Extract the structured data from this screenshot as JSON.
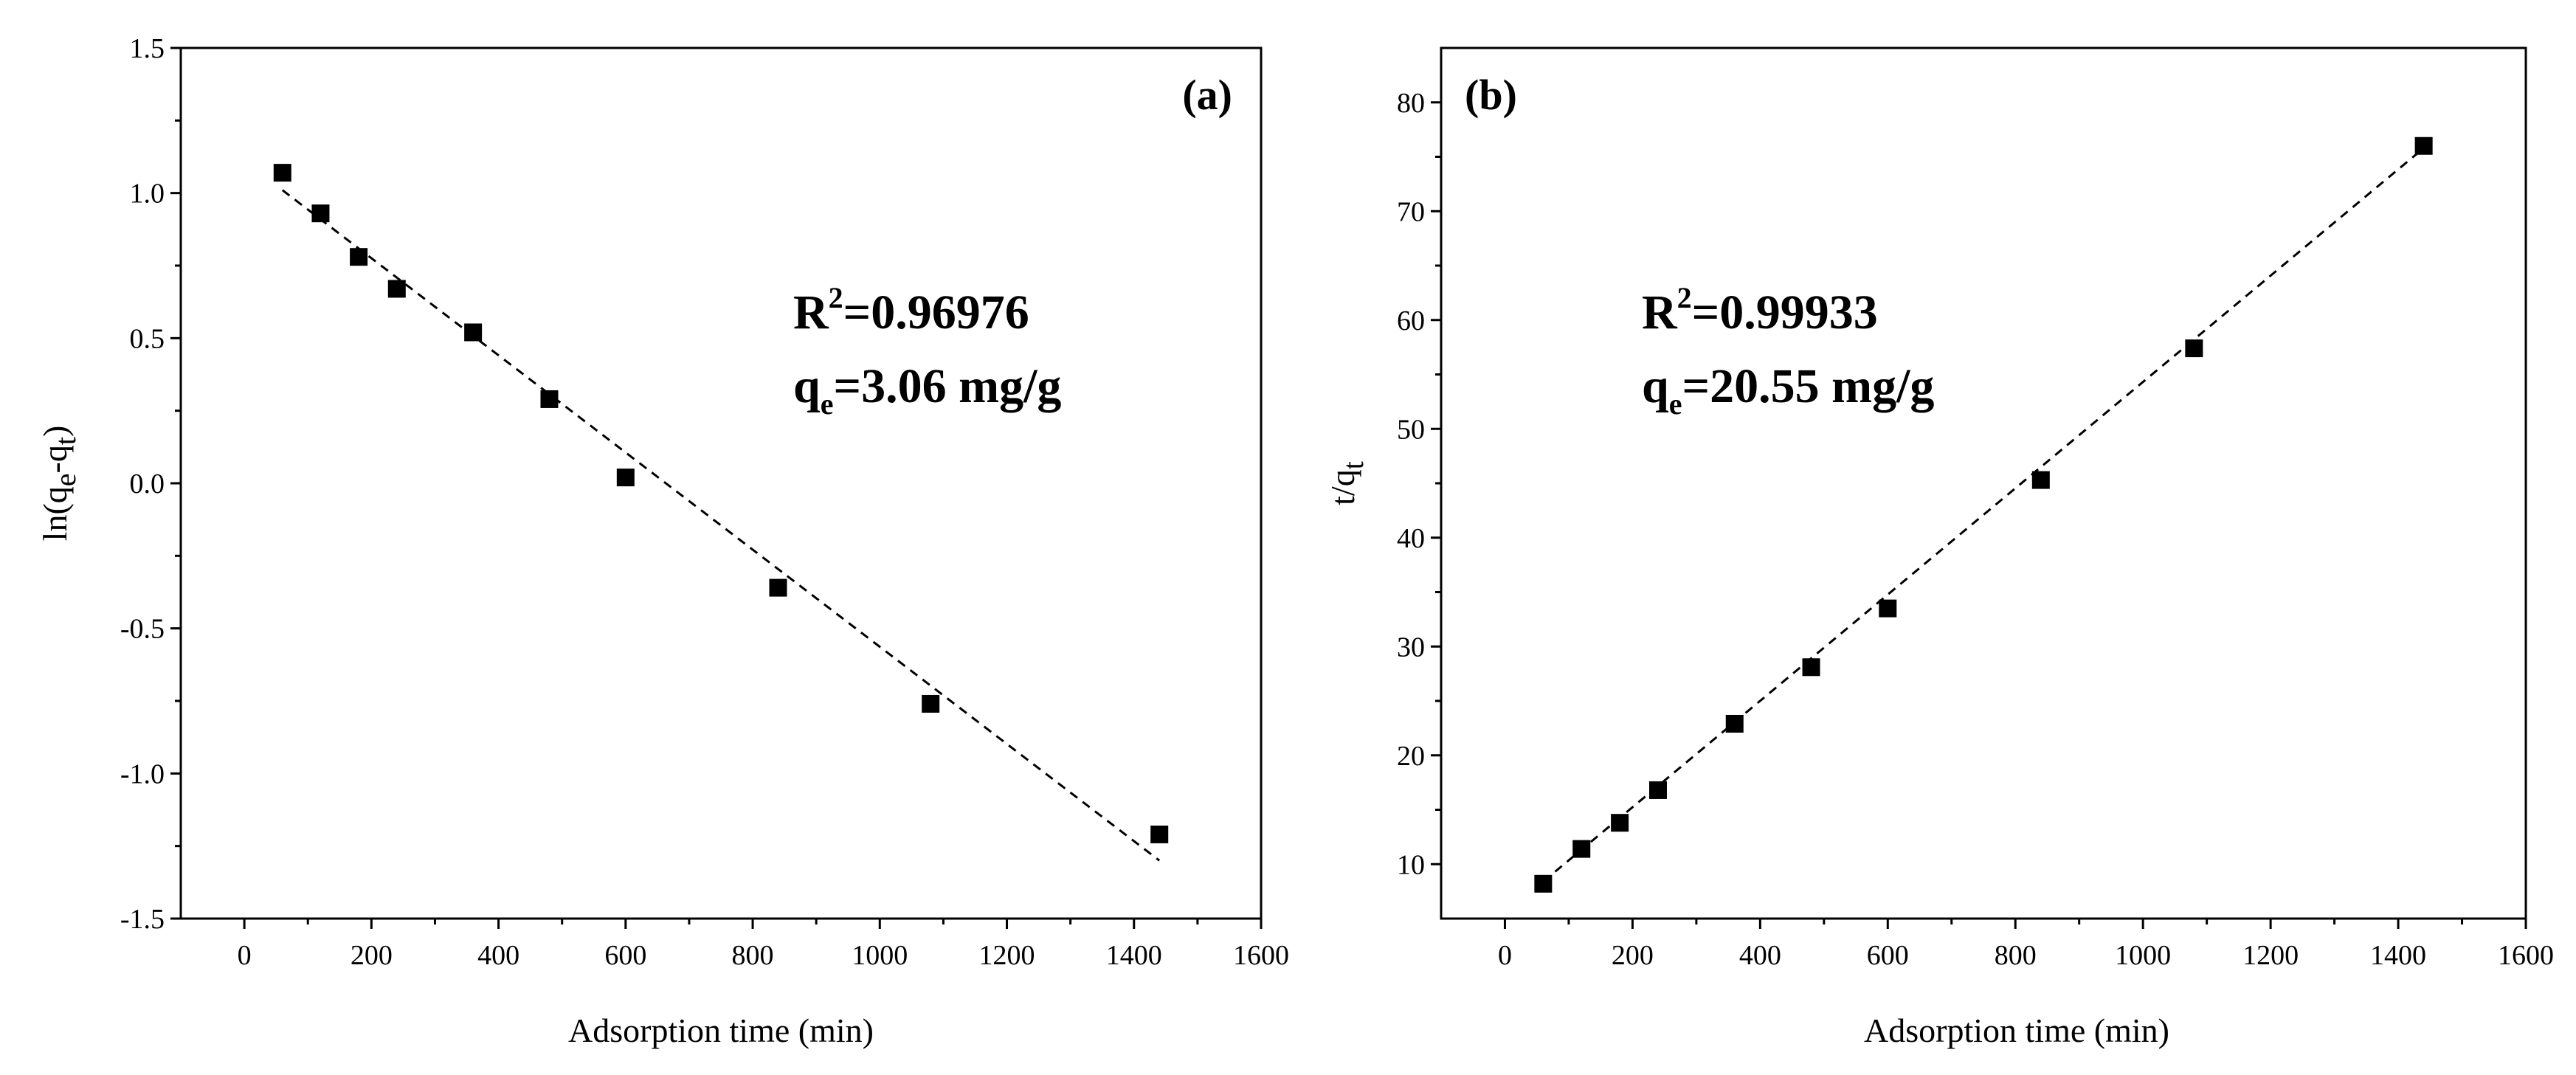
{
  "chart_data": [
    {
      "type": "scatter",
      "panel_label": "(a)",
      "title": "",
      "xlabel": "Adsorption time (min)",
      "ylabel": {
        "base": "ln(q",
        "sub1": "e",
        "mid": "-q",
        "sub2": "t",
        "end": ")"
      },
      "xlim": [
        -100,
        1600
      ],
      "ylim": [
        -1.5,
        1.5
      ],
      "xticks": [
        0,
        200,
        400,
        600,
        800,
        1000,
        1200,
        1400,
        1600
      ],
      "yticks": [
        "-1.5",
        "-1.0",
        "-0.5",
        "0.0",
        "0.5",
        "1.0",
        "1.5"
      ],
      "x": [
        60,
        120,
        180,
        240,
        360,
        480,
        600,
        840,
        1080,
        1440
      ],
      "y": [
        1.07,
        0.93,
        0.78,
        0.67,
        0.52,
        0.29,
        0.02,
        -0.36,
        -0.76,
        -1.21
      ],
      "fit_line": {
        "x": [
          60,
          1440
        ],
        "y": [
          1.01,
          -1.3
        ]
      },
      "annotation": {
        "r2_prefix": "R",
        "r2_sup": "2",
        "r2_value": "=0.96976",
        "qe_prefix": "q",
        "qe_sub": "e",
        "qe_value": "=3.06 mg/g"
      }
    },
    {
      "type": "scatter",
      "panel_label": "(b)",
      "title": "",
      "xlabel": "Adsorption time (min)",
      "ylabel": {
        "base": "t/q",
        "sub": "t"
      },
      "xlim": [
        -100,
        1600
      ],
      "ylim": [
        5,
        85
      ],
      "xticks": [
        0,
        200,
        400,
        600,
        800,
        1000,
        1200,
        1400,
        1600
      ],
      "yticks": [
        "10",
        "20",
        "30",
        "40",
        "50",
        "60",
        "70",
        "80"
      ],
      "x": [
        60,
        120,
        180,
        240,
        360,
        480,
        600,
        840,
        1080,
        1440
      ],
      "y": [
        8.2,
        11.4,
        13.8,
        16.8,
        22.9,
        28.1,
        33.5,
        45.3,
        57.4,
        76.0
      ],
      "fit_line": {
        "x": [
          60,
          1440
        ],
        "y": [
          8.4,
          75.8
        ]
      },
      "annotation": {
        "r2_prefix": "R",
        "r2_sup": "2",
        "r2_value": "=0.99933",
        "qe_prefix": "q",
        "qe_sub": "e",
        "qe_value": "=20.55 mg/g"
      }
    }
  ]
}
